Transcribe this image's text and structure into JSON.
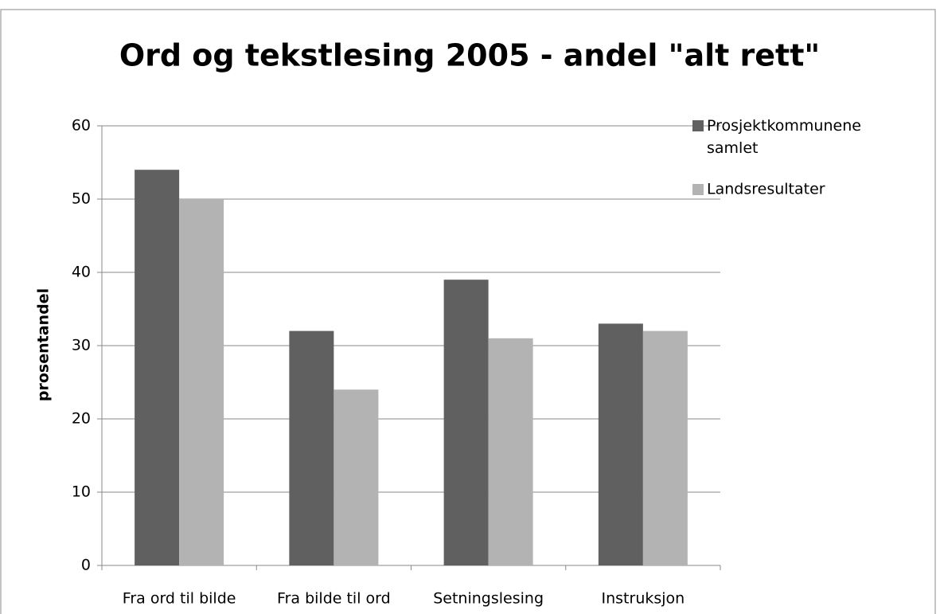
{
  "chart_data": {
    "type": "bar",
    "title": "Ord og tekstlesing 2005 - andel \"alt rett\"",
    "y_label": "prosentandel",
    "categories": [
      "Fra ord til bilde",
      "Fra bilde til ord",
      "Setningslesing",
      "Instruksjon"
    ],
    "series": [
      {
        "name": "Prosjektkommunene samlet",
        "color": "#606060",
        "values": [
          54,
          32,
          39,
          33
        ]
      },
      {
        "name": "Landsresultater",
        "color": "#b3b3b3",
        "values": [
          50,
          24,
          31,
          32
        ]
      }
    ],
    "ylim": [
      0,
      60
    ],
    "yticks": [
      0,
      10,
      20,
      30,
      40,
      50,
      60
    ],
    "grid": true,
    "legend": "top-right"
  }
}
